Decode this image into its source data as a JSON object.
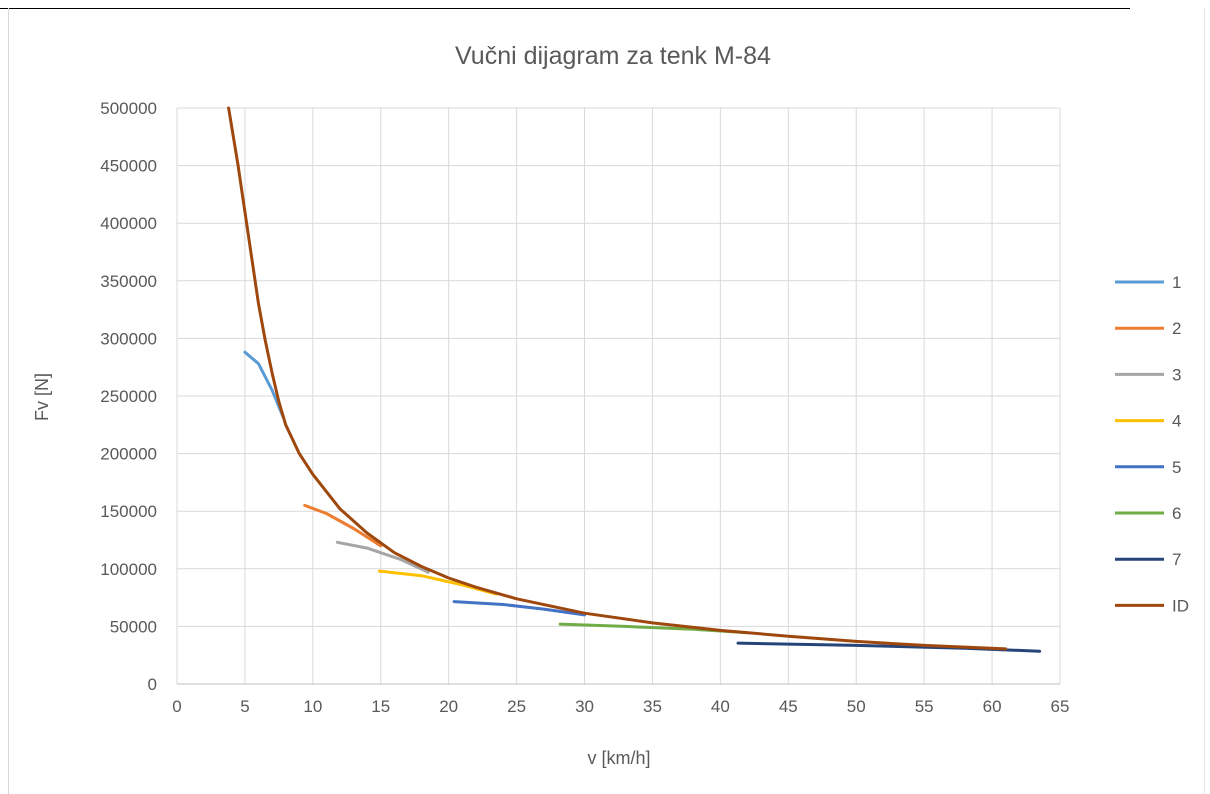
{
  "chart_data": {
    "type": "line",
    "title": "Vučni dijagram za tenk M-84",
    "xlabel": "v [km/h]",
    "ylabel": "Fv [N]",
    "xlim": [
      0,
      65
    ],
    "ylim": [
      0,
      500000
    ],
    "x_ticks": [
      "0",
      "5",
      "10",
      "15",
      "20",
      "25",
      "30",
      "35",
      "40",
      "45",
      "50",
      "55",
      "60",
      "65"
    ],
    "y_ticks": [
      "0",
      "50000",
      "100000",
      "150000",
      "200000",
      "250000",
      "300000",
      "350000",
      "400000",
      "450000",
      "500000"
    ],
    "grid": true,
    "legend_position": "right",
    "series": [
      {
        "name": "1",
        "color": "#5b9bd5",
        "points": [
          [
            5.0,
            288000
          ],
          [
            6.0,
            278000
          ],
          [
            7.0,
            255000
          ],
          [
            7.8,
            232000
          ]
        ]
      },
      {
        "name": "2",
        "color": "#ed7d31",
        "points": [
          [
            9.4,
            155000
          ],
          [
            11.0,
            148000
          ],
          [
            13.0,
            135000
          ],
          [
            15.0,
            120000
          ]
        ]
      },
      {
        "name": "3",
        "color": "#a5a5a5",
        "points": [
          [
            11.8,
            123000
          ],
          [
            14.0,
            118000
          ],
          [
            16.5,
            108000
          ],
          [
            18.5,
            97000
          ]
        ]
      },
      {
        "name": "4",
        "color": "#ffc000",
        "points": [
          [
            14.9,
            98000
          ],
          [
            18.0,
            94000
          ],
          [
            21.0,
            86000
          ],
          [
            23.5,
            78000
          ]
        ]
      },
      {
        "name": "5",
        "color": "#4472c4",
        "points": [
          [
            20.4,
            71500
          ],
          [
            24.0,
            69000
          ],
          [
            27.0,
            65000
          ],
          [
            30.0,
            60000
          ]
        ]
      },
      {
        "name": "6",
        "color": "#70ad47",
        "points": [
          [
            28.2,
            52000
          ],
          [
            33.0,
            50000
          ],
          [
            38.0,
            47500
          ],
          [
            42.0,
            44500
          ]
        ]
      },
      {
        "name": "7",
        "color": "#264478",
        "points": [
          [
            41.3,
            35500
          ],
          [
            50.0,
            33500
          ],
          [
            58.0,
            31000
          ],
          [
            63.5,
            28500
          ]
        ]
      },
      {
        "name": "ID",
        "color": "#9e480e",
        "points": [
          [
            3.8,
            500000
          ],
          [
            4.5,
            450000
          ],
          [
            5.0,
            410000
          ],
          [
            5.5,
            370000
          ],
          [
            6.0,
            330000
          ],
          [
            6.5,
            298000
          ],
          [
            7.0,
            270000
          ],
          [
            7.5,
            245000
          ],
          [
            8.0,
            225000
          ],
          [
            9.0,
            200000
          ],
          [
            10.0,
            182000
          ],
          [
            12.0,
            152000
          ],
          [
            14.0,
            131000
          ],
          [
            16.0,
            114000
          ],
          [
            18.0,
            102000
          ],
          [
            20.0,
            92000
          ],
          [
            22.0,
            84000
          ],
          [
            25.0,
            74000
          ],
          [
            30.0,
            61500
          ],
          [
            35.0,
            53000
          ],
          [
            40.0,
            46500
          ],
          [
            45.0,
            41500
          ],
          [
            50.0,
            37000
          ],
          [
            55.0,
            33500
          ],
          [
            61.0,
            30500
          ]
        ]
      }
    ]
  }
}
